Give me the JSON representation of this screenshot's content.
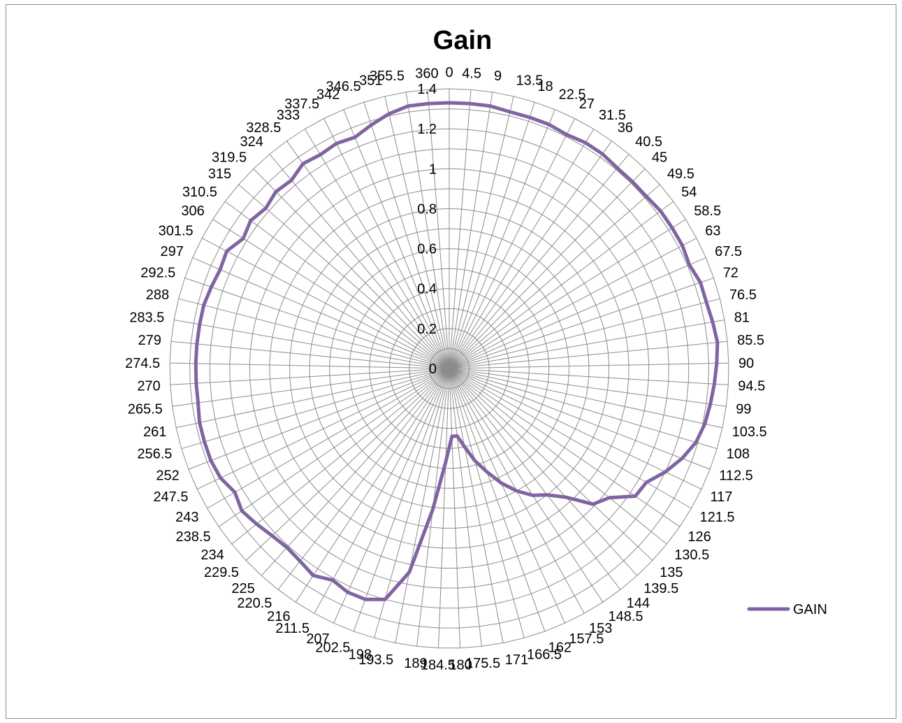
{
  "chart_data": {
    "type": "radar",
    "title": "Gain",
    "grid": true,
    "legend_position": "right",
    "rlim": [
      0,
      1.4
    ],
    "r_ticks": [
      "0",
      "0.2",
      "0.4",
      "0.6",
      "0.8",
      "1",
      "1.2",
      "1.4"
    ],
    "categories": [
      "0",
      "4.5",
      "9",
      "13.5",
      "18",
      "22.5",
      "27",
      "31.5",
      "36",
      "40.5",
      "45",
      "49.5",
      "54",
      "58.5",
      "63",
      "67.5",
      "72",
      "76.5",
      "81",
      "85.5",
      "90",
      "94.5",
      "99",
      "103.5",
      "108",
      "112.5",
      "117",
      "121.5",
      "126",
      "130.5",
      "135",
      "139.5",
      "144",
      "148.5",
      "153",
      "157.5",
      "162",
      "166.5",
      "171",
      "175.5",
      "180",
      "184.5",
      "189",
      "193.5",
      "198",
      "202.5",
      "207",
      "211.5",
      "216",
      "220.5",
      "225",
      "229.5",
      "234",
      "238.5",
      "243",
      "247.5",
      "252",
      "256.5",
      "261",
      "265.5",
      "270",
      "274.5",
      "279",
      "283.5",
      "288",
      "292.5",
      "297",
      "301.5",
      "306",
      "310.5",
      "315",
      "319.5",
      "324",
      "328.5",
      "333",
      "337.5",
      "342",
      "346.5",
      "351",
      "355.5",
      "360"
    ],
    "series": [
      {
        "name": "GAIN",
        "color": "#8064a2",
        "values": [
          1.33,
          1.33,
          1.33,
          1.32,
          1.32,
          1.32,
          1.31,
          1.32,
          1.32,
          1.31,
          1.31,
          1.31,
          1.32,
          1.32,
          1.32,
          1.31,
          1.33,
          1.33,
          1.34,
          1.35,
          1.34,
          1.33,
          1.32,
          1.31,
          1.29,
          1.25,
          1.2,
          1.14,
          1.13,
          1.03,
          0.99,
          0.87,
          0.8,
          0.76,
          0.7,
          0.63,
          0.55,
          0.48,
          0.4,
          0.34,
          0.34,
          0.47,
          0.71,
          1.04,
          1.2,
          1.23,
          1.23,
          1.21,
          1.24,
          1.22,
          1.21,
          1.22,
          1.24,
          1.26,
          1.24,
          1.27,
          1.28,
          1.28,
          1.28,
          1.27,
          1.27,
          1.27,
          1.27,
          1.27,
          1.27,
          1.26,
          1.25,
          1.26,
          1.22,
          1.24,
          1.22,
          1.24,
          1.23,
          1.26,
          1.25,
          1.26,
          1.25,
          1.28,
          1.31,
          1.33,
          1.33
        ]
      }
    ]
  }
}
